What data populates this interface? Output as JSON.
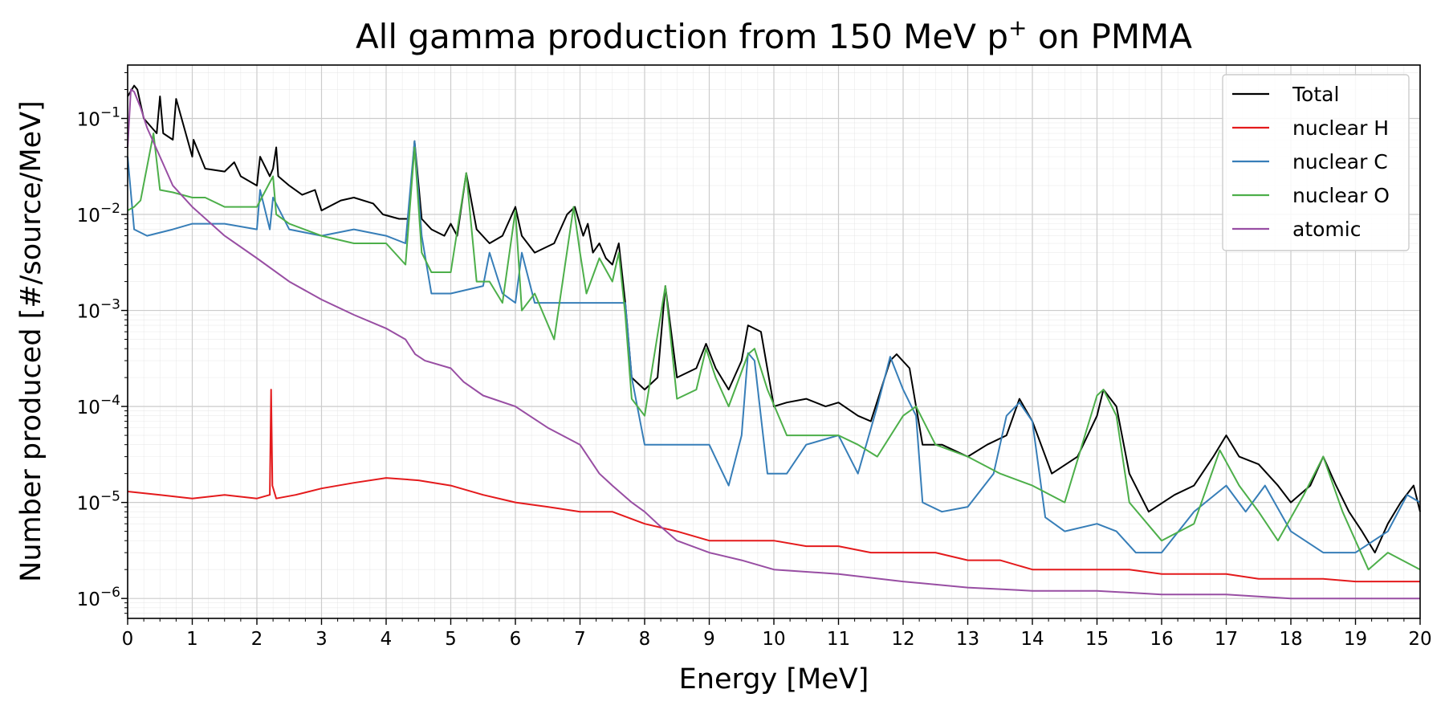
{
  "chart_data": {
    "type": "line",
    "title": "All gamma production from 150 MeV p⁺ on PMMA",
    "title_main": "All gamma production from 150 MeV p",
    "title_sup": "+",
    "title_tail": " on PMMA",
    "xlabel": "Energy [MeV]",
    "ylabel": "Number produced [#/source/MeV]",
    "x_scale": "linear",
    "y_scale": "log",
    "xlim": [
      0,
      20
    ],
    "ylim": [
      6.2e-07,
      0.36
    ],
    "x_ticks": [
      0,
      1,
      2,
      3,
      4,
      5,
      6,
      7,
      8,
      9,
      10,
      11,
      12,
      13,
      14,
      15,
      16,
      17,
      18,
      19,
      20
    ],
    "x_tick_labels": [
      "0",
      "1",
      "2",
      "3",
      "4",
      "5",
      "6",
      "7",
      "8",
      "9",
      "10",
      "11",
      "12",
      "13",
      "14",
      "15",
      "16",
      "17",
      "18",
      "19",
      "20"
    ],
    "y_ticks": [
      {
        "value": 1e-06,
        "base": "10",
        "exp": "−6"
      },
      {
        "value": 1e-05,
        "base": "10",
        "exp": "−5"
      },
      {
        "value": 0.0001,
        "base": "10",
        "exp": "−4"
      },
      {
        "value": 0.001,
        "base": "10",
        "exp": "−3"
      },
      {
        "value": 0.01,
        "base": "10",
        "exp": "−2"
      },
      {
        "value": 0.1,
        "base": "10",
        "exp": "−1"
      }
    ],
    "grid": true,
    "legend_position": "top-right",
    "series": [
      {
        "name": "Total",
        "color": "#000000",
        "x": [
          0.0,
          0.1,
          0.15,
          0.25,
          0.45,
          0.5,
          0.55,
          0.7,
          0.75,
          1.0,
          1.02,
          1.2,
          1.5,
          1.65,
          1.75,
          2.0,
          2.05,
          2.2,
          2.25,
          2.3,
          2.33,
          2.5,
          2.7,
          2.9,
          3.0,
          3.3,
          3.5,
          3.8,
          3.95,
          4.2,
          4.35,
          4.44,
          4.55,
          4.7,
          4.9,
          5.0,
          5.1,
          5.24,
          5.4,
          5.6,
          5.8,
          6.0,
          6.1,
          6.3,
          6.6,
          6.8,
          6.92,
          7.05,
          7.12,
          7.2,
          7.3,
          7.4,
          7.5,
          7.6,
          7.7,
          7.8,
          8.0,
          8.2,
          8.32,
          8.5,
          8.8,
          8.95,
          9.1,
          9.3,
          9.5,
          9.6,
          9.8,
          10.0,
          10.2,
          10.5,
          10.8,
          11.0,
          11.3,
          11.5,
          11.8,
          11.9,
          12.1,
          12.3,
          12.6,
          13.0,
          13.3,
          13.6,
          13.8,
          14.0,
          14.3,
          14.7,
          15.0,
          15.1,
          15.3,
          15.5,
          15.8,
          16.2,
          16.5,
          16.8,
          17.0,
          17.2,
          17.5,
          17.8,
          18.0,
          18.3,
          18.5,
          18.7,
          18.9,
          19.1,
          19.3,
          19.5,
          19.7,
          19.9,
          20.0
        ],
        "y": [
          0.17,
          0.22,
          0.2,
          0.1,
          0.07,
          0.17,
          0.07,
          0.06,
          0.16,
          0.04,
          0.06,
          0.03,
          0.028,
          0.035,
          0.025,
          0.02,
          0.04,
          0.025,
          0.03,
          0.05,
          0.025,
          0.02,
          0.016,
          0.018,
          0.011,
          0.014,
          0.015,
          0.013,
          0.01,
          0.009,
          0.009,
          0.058,
          0.009,
          0.007,
          0.006,
          0.008,
          0.006,
          0.027,
          0.007,
          0.005,
          0.006,
          0.012,
          0.006,
          0.004,
          0.005,
          0.01,
          0.012,
          0.006,
          0.008,
          0.004,
          0.005,
          0.0035,
          0.003,
          0.005,
          0.0012,
          0.0002,
          0.00015,
          0.0002,
          0.0018,
          0.0002,
          0.00025,
          0.00045,
          0.00025,
          0.00015,
          0.0003,
          0.0007,
          0.0006,
          0.0001,
          0.00011,
          0.00012,
          0.0001,
          0.00011,
          8e-05,
          7e-05,
          0.0003,
          0.00035,
          0.00025,
          4e-05,
          4e-05,
          3e-05,
          4e-05,
          5e-05,
          0.00012,
          7e-05,
          2e-05,
          3e-05,
          8e-05,
          0.00015,
          0.0001,
          2e-05,
          8e-06,
          1.2e-05,
          1.5e-05,
          3e-05,
          5e-05,
          3e-05,
          2.5e-05,
          1.5e-05,
          1e-05,
          1.5e-05,
          3e-05,
          1.5e-05,
          8e-06,
          5e-06,
          3e-06,
          6e-06,
          1e-05,
          1.5e-05,
          8e-06
        ]
      },
      {
        "name": "nuclear H",
        "color": "#e41a1c",
        "x": [
          0.0,
          0.5,
          1.0,
          1.5,
          2.0,
          2.2,
          2.22,
          2.24,
          2.3,
          2.6,
          3.0,
          3.5,
          4.0,
          4.5,
          5.0,
          5.5,
          6.0,
          6.5,
          7.0,
          7.5,
          8.0,
          8.5,
          9.0,
          9.5,
          10.0,
          10.5,
          11.0,
          11.5,
          12.0,
          12.5,
          13.0,
          13.5,
          14.0,
          14.5,
          15.0,
          15.5,
          16.0,
          16.5,
          17.0,
          17.5,
          18.0,
          18.5,
          19.0,
          19.5,
          20.0
        ],
        "y": [
          1.3e-05,
          1.2e-05,
          1.1e-05,
          1.2e-05,
          1.1e-05,
          1.2e-05,
          0.00015,
          1.5e-05,
          1.1e-05,
          1.2e-05,
          1.4e-05,
          1.6e-05,
          1.8e-05,
          1.7e-05,
          1.5e-05,
          1.2e-05,
          1e-05,
          9e-06,
          8e-06,
          8e-06,
          6e-06,
          5e-06,
          4e-06,
          4e-06,
          4e-06,
          3.5e-06,
          3.5e-06,
          3e-06,
          3e-06,
          3e-06,
          2.5e-06,
          2.5e-06,
          2e-06,
          2e-06,
          2e-06,
          2e-06,
          1.8e-06,
          1.8e-06,
          1.8e-06,
          1.6e-06,
          1.6e-06,
          1.6e-06,
          1.5e-06,
          1.5e-06,
          1.5e-06
        ]
      },
      {
        "name": "nuclear C",
        "color": "#377eb8",
        "x": [
          0.0,
          0.1,
          0.3,
          0.7,
          1.0,
          1.5,
          2.0,
          2.05,
          2.2,
          2.25,
          2.5,
          3.0,
          3.5,
          4.0,
          4.3,
          4.44,
          4.55,
          4.7,
          5.0,
          5.5,
          5.6,
          5.8,
          6.0,
          6.1,
          6.3,
          6.6,
          7.0,
          7.5,
          7.7,
          7.8,
          8.0,
          8.5,
          8.8,
          9.0,
          9.3,
          9.5,
          9.6,
          9.7,
          9.9,
          10.2,
          10.5,
          11.0,
          11.3,
          11.6,
          11.8,
          12.0,
          12.2,
          12.3,
          12.6,
          13.0,
          13.4,
          13.6,
          13.8,
          14.0,
          14.2,
          14.5,
          15.0,
          15.3,
          15.6,
          16.0,
          16.5,
          17.0,
          17.3,
          17.6,
          18.0,
          18.5,
          19.0,
          19.5,
          19.8,
          20.0
        ],
        "y": [
          0.04,
          0.007,
          0.006,
          0.007,
          0.008,
          0.008,
          0.007,
          0.018,
          0.007,
          0.015,
          0.007,
          0.006,
          0.007,
          0.006,
          0.005,
          0.058,
          0.006,
          0.0015,
          0.0015,
          0.0018,
          0.004,
          0.0015,
          0.0012,
          0.004,
          0.0012,
          0.0012,
          0.0012,
          0.0012,
          0.0012,
          0.0002,
          4e-05,
          4e-05,
          4e-05,
          4e-05,
          1.5e-05,
          5e-05,
          0.00036,
          0.0003,
          2e-05,
          2e-05,
          4e-05,
          5e-05,
          2e-05,
          0.0001,
          0.00033,
          0.00015,
          8e-05,
          1e-05,
          8e-06,
          9e-06,
          2e-05,
          8e-05,
          0.00011,
          7e-05,
          7e-06,
          5e-06,
          6e-06,
          5e-06,
          3e-06,
          3e-06,
          8e-06,
          1.5e-05,
          8e-06,
          1.5e-05,
          5e-06,
          3e-06,
          3e-06,
          5e-06,
          1.2e-05,
          1e-05
        ]
      },
      {
        "name": "nuclear O",
        "color": "#4daf4a",
        "x": [
          0.0,
          0.1,
          0.2,
          0.4,
          0.5,
          0.7,
          1.0,
          1.2,
          1.5,
          2.0,
          2.25,
          2.3,
          2.5,
          3.0,
          3.5,
          4.0,
          4.3,
          4.44,
          4.55,
          4.7,
          5.0,
          5.24,
          5.4,
          5.6,
          5.8,
          6.0,
          6.1,
          6.3,
          6.6,
          6.9,
          7.0,
          7.1,
          7.3,
          7.5,
          7.6,
          7.7,
          7.8,
          8.0,
          8.32,
          8.5,
          8.8,
          8.95,
          9.1,
          9.3,
          9.6,
          9.7,
          9.9,
          10.2,
          10.5,
          11.0,
          11.3,
          11.6,
          12.0,
          12.2,
          12.5,
          13.0,
          13.5,
          14.0,
          14.5,
          15.0,
          15.1,
          15.3,
          15.5,
          16.0,
          16.5,
          16.9,
          17.2,
          17.5,
          17.8,
          18.2,
          18.5,
          18.8,
          19.2,
          19.5,
          20.0
        ],
        "y": [
          0.011,
          0.012,
          0.014,
          0.07,
          0.018,
          0.017,
          0.015,
          0.015,
          0.012,
          0.012,
          0.025,
          0.01,
          0.008,
          0.006,
          0.005,
          0.005,
          0.003,
          0.05,
          0.004,
          0.0025,
          0.0025,
          0.027,
          0.002,
          0.002,
          0.0012,
          0.011,
          0.001,
          0.0015,
          0.0005,
          0.012,
          0.004,
          0.0015,
          0.0035,
          0.002,
          0.004,
          0.0009,
          0.00012,
          8e-05,
          0.0018,
          0.00012,
          0.00015,
          0.0004,
          0.0002,
          0.0001,
          0.00035,
          0.0004,
          0.00015,
          5e-05,
          5e-05,
          5e-05,
          4e-05,
          3e-05,
          8e-05,
          0.0001,
          4e-05,
          3e-05,
          2e-05,
          1.5e-05,
          1e-05,
          0.00013,
          0.00015,
          8e-05,
          1e-05,
          4e-06,
          6e-06,
          3.5e-05,
          1.5e-05,
          8e-06,
          4e-06,
          1.2e-05,
          3e-05,
          8e-06,
          2e-06,
          3e-06,
          2e-06
        ]
      },
      {
        "name": "atomic",
        "color": "#984ea3",
        "x": [
          0.0,
          0.05,
          0.1,
          0.2,
          0.3,
          0.5,
          0.7,
          1.0,
          1.5,
          2.0,
          2.5,
          3.0,
          3.5,
          4.0,
          4.3,
          4.45,
          4.6,
          5.0,
          5.2,
          5.5,
          6.0,
          6.5,
          7.0,
          7.3,
          7.5,
          7.8,
          8.0,
          8.2,
          8.5,
          9.0,
          9.5,
          10.0,
          11.0,
          12.0,
          13.0,
          14.0,
          15.0,
          16.0,
          17.0,
          18.0,
          19.0,
          20.0
        ],
        "y": [
          0.05,
          0.2,
          0.19,
          0.13,
          0.08,
          0.04,
          0.02,
          0.012,
          0.006,
          0.0035,
          0.002,
          0.0013,
          0.0009,
          0.00065,
          0.0005,
          0.00035,
          0.0003,
          0.00025,
          0.00018,
          0.00013,
          0.0001,
          6e-05,
          4e-05,
          2e-05,
          1.5e-05,
          1e-05,
          8e-06,
          6e-06,
          4e-06,
          3e-06,
          2.5e-06,
          2e-06,
          1.8e-06,
          1.5e-06,
          1.3e-06,
          1.2e-06,
          1.2e-06,
          1.1e-06,
          1.1e-06,
          1e-06,
          1e-06,
          1e-06
        ]
      }
    ]
  }
}
